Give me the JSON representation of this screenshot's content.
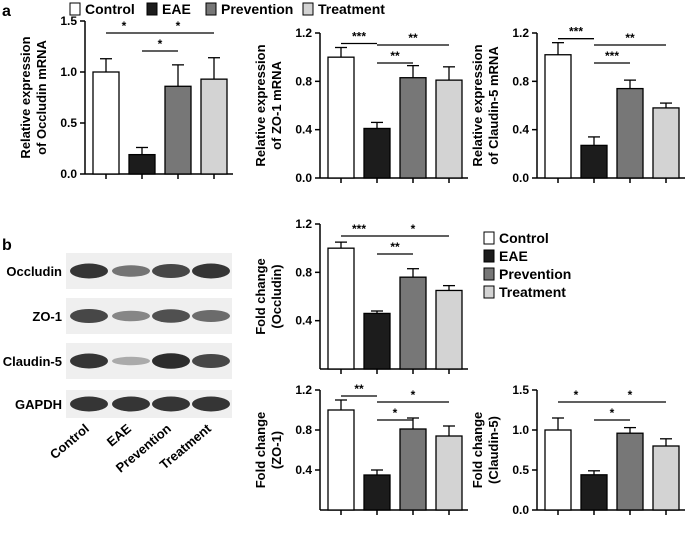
{
  "panel_labels": {
    "a": "a",
    "b": "b"
  },
  "colors": {
    "Control": "#ffffff",
    "EAE": "#1c1c1c",
    "Prevention": "#777777",
    "Treatment": "#d3d3d3"
  },
  "legend_top": [
    "Control",
    "EAE",
    "Prevention",
    "Treatment"
  ],
  "legend_right": [
    "Control",
    "EAE",
    "Prevention",
    "Treatment"
  ],
  "western_blot": {
    "rows": [
      "Occludin",
      "ZO-1",
      "Claudin-5",
      "GAPDH"
    ],
    "lanes": [
      "Control",
      "EAE",
      "Prevention",
      "Treatment"
    ],
    "band_intensity": [
      [
        0.9,
        0.55,
        0.8,
        0.9
      ],
      [
        0.8,
        0.45,
        0.75,
        0.6
      ],
      [
        0.9,
        0.25,
        0.95,
        0.8
      ],
      [
        0.9,
        0.9,
        0.9,
        0.9
      ]
    ]
  },
  "chart_data": [
    {
      "type": "bar",
      "categories": [
        "Control",
        "EAE",
        "Prevention",
        "Treatment"
      ],
      "values": [
        1.0,
        0.19,
        0.86,
        0.93
      ],
      "errors": [
        0.13,
        0.07,
        0.21,
        0.21
      ],
      "ylabel": [
        "Relative expression",
        "of Occludin mRNA"
      ],
      "ylim": [
        0,
        1.5
      ],
      "yticks": [
        "0.0",
        "0.5",
        "1.0",
        "1.5"
      ],
      "sig": [
        {
          "from": 0,
          "to": 1,
          "label": "*"
        },
        {
          "from": 1,
          "to": 3,
          "label": "*"
        },
        {
          "from": 1,
          "to": 2,
          "label": "*"
        }
      ]
    },
    {
      "type": "bar",
      "categories": [
        "Control",
        "EAE",
        "Prevention",
        "Treatment"
      ],
      "values": [
        1.0,
        0.41,
        0.83,
        0.81
      ],
      "errors": [
        0.08,
        0.05,
        0.1,
        0.11
      ],
      "ylabel": [
        "Relative expression",
        "of ZO-1 mRNA"
      ],
      "ylim": [
        0,
        1.2
      ],
      "yticks": [
        "0.0",
        "0.4",
        "0.8",
        "1.2"
      ],
      "sig": [
        {
          "from": 0,
          "to": 1,
          "label": "***"
        },
        {
          "from": 1,
          "to": 3,
          "label": "**"
        },
        {
          "from": 1,
          "to": 2,
          "label": "**"
        }
      ]
    },
    {
      "type": "bar",
      "categories": [
        "Control",
        "EAE",
        "Prevention",
        "Treatment"
      ],
      "values": [
        1.02,
        0.27,
        0.74,
        0.58
      ],
      "errors": [
        0.1,
        0.07,
        0.07,
        0.04
      ],
      "ylabel": [
        "Relative expression",
        "of Claudin-5 mRNA"
      ],
      "ylim": [
        0,
        1.2
      ],
      "yticks": [
        "0.0",
        "0.4",
        "0.8",
        "1.2"
      ],
      "sig": [
        {
          "from": 0,
          "to": 1,
          "label": "***"
        },
        {
          "from": 1,
          "to": 3,
          "label": "**"
        },
        {
          "from": 1,
          "to": 2,
          "label": "***"
        }
      ]
    },
    {
      "type": "bar",
      "categories": [
        "Control",
        "EAE",
        "Prevention",
        "Treatment"
      ],
      "values": [
        1.0,
        0.46,
        0.76,
        0.65
      ],
      "errors": [
        0.05,
        0.02,
        0.07,
        0.04
      ],
      "ylabel": [
        "Fold change",
        "(Occludin)"
      ],
      "ylim": [
        0,
        1.2
      ],
      "yticks": [
        "0.4",
        "0.8",
        "1.2"
      ],
      "sig": [
        {
          "from": 0,
          "to": 1,
          "label": "***"
        },
        {
          "from": 1,
          "to": 3,
          "label": "*"
        },
        {
          "from": 1,
          "to": 2,
          "label": "**"
        }
      ]
    },
    {
      "type": "bar",
      "categories": [
        "Control",
        "EAE",
        "Prevention",
        "Treatment"
      ],
      "values": [
        1.0,
        0.35,
        0.81,
        0.74
      ],
      "errors": [
        0.1,
        0.05,
        0.11,
        0.1
      ],
      "ylabel": [
        "Fold change",
        "(ZO-1)"
      ],
      "ylim": [
        0,
        1.2
      ],
      "yticks": [
        "0.4",
        "0.8",
        "1.2"
      ],
      "sig": [
        {
          "from": 0,
          "to": 1,
          "label": "**"
        },
        {
          "from": 1,
          "to": 3,
          "label": "*"
        },
        {
          "from": 1,
          "to": 2,
          "label": "*"
        }
      ]
    },
    {
      "type": "bar",
      "categories": [
        "Control",
        "EAE",
        "Prevention",
        "Treatment"
      ],
      "values": [
        1.0,
        0.44,
        0.96,
        0.8
      ],
      "errors": [
        0.15,
        0.05,
        0.07,
        0.09
      ],
      "ylabel": [
        "Fold change",
        "(Claudin-5)"
      ],
      "ylim": [
        0,
        1.5
      ],
      "yticks": [
        "0.0",
        "0.5",
        "1.0",
        "1.5"
      ],
      "sig": [
        {
          "from": 0,
          "to": 1,
          "label": "*"
        },
        {
          "from": 1,
          "to": 3,
          "label": "*"
        },
        {
          "from": 1,
          "to": 2,
          "label": "*"
        }
      ]
    }
  ]
}
